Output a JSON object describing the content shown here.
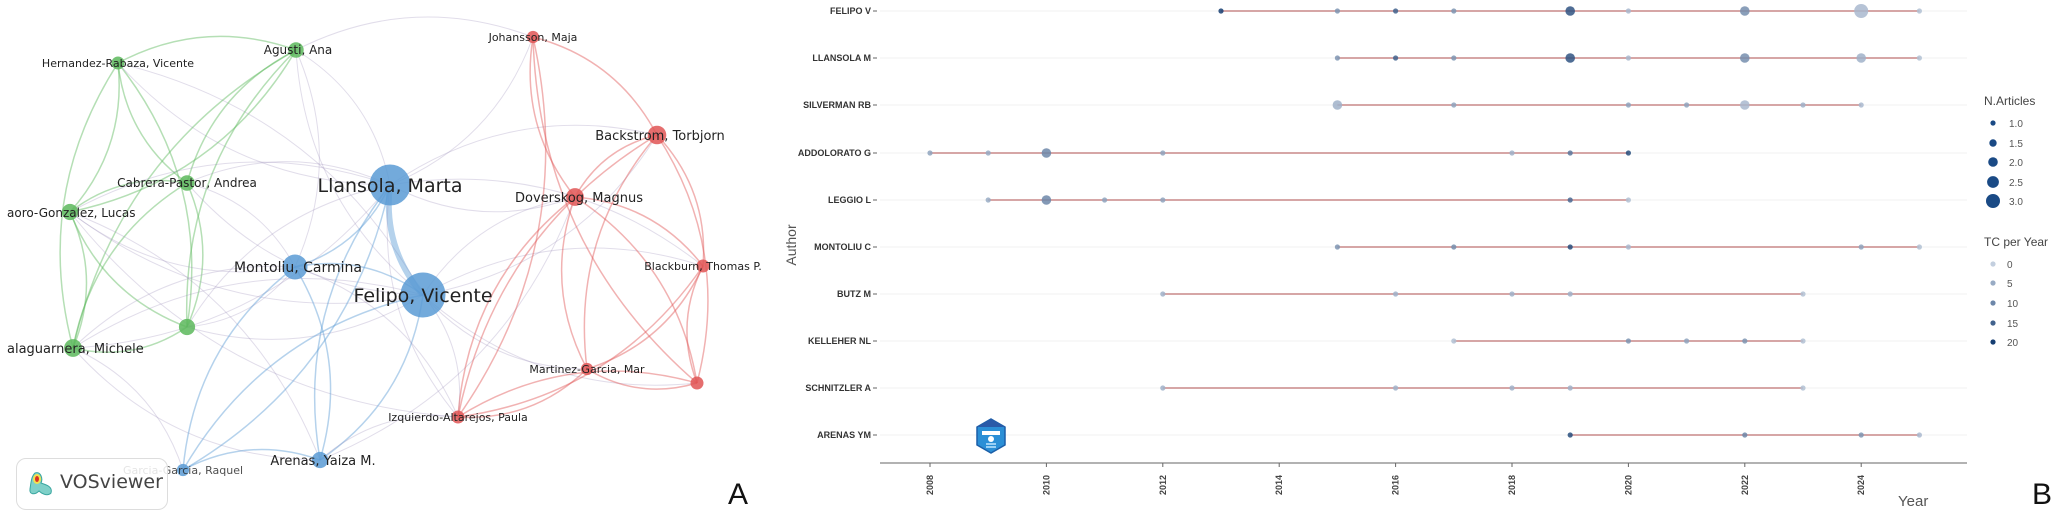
{
  "panels": {
    "left_letter": "A",
    "right_letter": "B"
  },
  "network": {
    "software_label": "VOSviewer",
    "cluster_colors": {
      "green": "#5cb85c",
      "blue": "#5a9bd5",
      "red": "#e05555"
    },
    "nodes": [
      {
        "id": "hernandez",
        "label": "Hernandez-Rabaza, Vicente",
        "cluster": "green",
        "weight": 1
      },
      {
        "id": "agusti",
        "label": "Agusti, Ana",
        "cluster": "green",
        "weight": 1.3
      },
      {
        "id": "cabrera",
        "label": "Cabrera-Pastor, Andrea",
        "cluster": "green",
        "weight": 1.3
      },
      {
        "id": "lucas",
        "label": "aoro-Gonzalez, Lucas",
        "cluster": "green",
        "weight": 1.4
      },
      {
        "id": "green5",
        "label": "",
        "cluster": "green",
        "weight": 1.4
      },
      {
        "id": "malaguarnera",
        "label": "alaguarnera, Michele",
        "cluster": "green",
        "weight": 1.6
      },
      {
        "id": "llansola",
        "label": "Llansola, Marta",
        "cluster": "blue",
        "weight": 4.5
      },
      {
        "id": "felipo",
        "label": "Felipo, Vicente",
        "cluster": "blue",
        "weight": 5
      },
      {
        "id": "montoliu",
        "label": "Montoliu, Carmina",
        "cluster": "blue",
        "weight": 2.5
      },
      {
        "id": "arenas",
        "label": "Arenas, Yaiza M.",
        "cluster": "blue",
        "weight": 1.4
      },
      {
        "id": "garcia",
        "label": "Garcia-Garcia, Raquel",
        "cluster": "blue",
        "weight": 0.9
      },
      {
        "id": "johansson",
        "label": "Johansson, Maja",
        "cluster": "red",
        "weight": 0.9
      },
      {
        "id": "backstrom",
        "label": "Backstrom, Torbjorn",
        "cluster": "red",
        "weight": 1.7
      },
      {
        "id": "doverskog",
        "label": "Doverskog, Magnus",
        "cluster": "red",
        "weight": 1.6
      },
      {
        "id": "blackburn",
        "label": "Blackburn, Thomas P.",
        "cluster": "red",
        "weight": 1
      },
      {
        "id": "martinez",
        "label": "Martinez-Garcia, Mar",
        "cluster": "red",
        "weight": 0.9
      },
      {
        "id": "red7",
        "label": "",
        "cluster": "red",
        "weight": 1
      },
      {
        "id": "izquierdo",
        "label": "Izquierdo-Altarejos, Paula",
        "cluster": "red",
        "weight": 1
      }
    ],
    "links": [
      [
        "hernandez",
        "agusti"
      ],
      [
        "hernandez",
        "cabrera"
      ],
      [
        "hernandez",
        "lucas"
      ],
      [
        "hernandez",
        "malaguarnera"
      ],
      [
        "hernandez",
        "green5"
      ],
      [
        "hernandez",
        "llansola"
      ],
      [
        "hernandez",
        "felipo"
      ],
      [
        "agusti",
        "cabrera"
      ],
      [
        "agusti",
        "lucas"
      ],
      [
        "agusti",
        "green5"
      ],
      [
        "agusti",
        "llansola"
      ],
      [
        "agusti",
        "felipo"
      ],
      [
        "agusti",
        "montoliu"
      ],
      [
        "agusti",
        "malaguarnera"
      ],
      [
        "agusti",
        "johansson"
      ],
      [
        "cabrera",
        "lucas"
      ],
      [
        "cabrera",
        "green5"
      ],
      [
        "cabrera",
        "malaguarnera"
      ],
      [
        "cabrera",
        "llansola"
      ],
      [
        "cabrera",
        "felipo"
      ],
      [
        "cabrera",
        "montoliu"
      ],
      [
        "lucas",
        "green5"
      ],
      [
        "lucas",
        "malaguarnera"
      ],
      [
        "lucas",
        "felipo"
      ],
      [
        "lucas",
        "llansola"
      ],
      [
        "lucas",
        "montoliu"
      ],
      [
        "lucas",
        "arenas"
      ],
      [
        "lucas",
        "izquierdo"
      ],
      [
        "green5",
        "malaguarnera"
      ],
      [
        "green5",
        "felipo"
      ],
      [
        "green5",
        "llansola"
      ],
      [
        "green5",
        "montoliu"
      ],
      [
        "malaguarnera",
        "felipo"
      ],
      [
        "malaguarnera",
        "llansola"
      ],
      [
        "malaguarnera",
        "montoliu"
      ],
      [
        "malaguarnera",
        "arenas"
      ],
      [
        "malaguarnera",
        "garcia"
      ],
      [
        "llansola",
        "felipo"
      ],
      [
        "llansola",
        "montoliu"
      ],
      [
        "llansola",
        "arenas"
      ],
      [
        "llansola",
        "garcia"
      ],
      [
        "llansola",
        "doverskog"
      ],
      [
        "llansola",
        "backstrom"
      ],
      [
        "llansola",
        "izquierdo"
      ],
      [
        "llansola",
        "blackburn"
      ],
      [
        "felipo",
        "montoliu"
      ],
      [
        "felipo",
        "arenas"
      ],
      [
        "felipo",
        "garcia"
      ],
      [
        "felipo",
        "doverskog"
      ],
      [
        "felipo",
        "backstrom"
      ],
      [
        "felipo",
        "blackburn"
      ],
      [
        "felipo",
        "martinez"
      ],
      [
        "felipo",
        "izquierdo"
      ],
      [
        "felipo",
        "red7"
      ],
      [
        "montoliu",
        "arenas"
      ],
      [
        "montoliu",
        "garcia"
      ],
      [
        "montoliu",
        "izquierdo"
      ],
      [
        "arenas",
        "garcia"
      ],
      [
        "arenas",
        "izquierdo"
      ],
      [
        "arenas",
        "doverskog"
      ],
      [
        "johansson",
        "backstrom"
      ],
      [
        "johansson",
        "doverskog"
      ],
      [
        "johansson",
        "izquierdo"
      ],
      [
        "johansson",
        "red7"
      ],
      [
        "johansson",
        "llansola"
      ],
      [
        "backstrom",
        "doverskog"
      ],
      [
        "backstrom",
        "blackburn"
      ],
      [
        "backstrom",
        "martinez"
      ],
      [
        "backstrom",
        "red7"
      ],
      [
        "backstrom",
        "izquierdo"
      ],
      [
        "doverskog",
        "blackburn"
      ],
      [
        "doverskog",
        "martinez"
      ],
      [
        "doverskog",
        "red7"
      ],
      [
        "doverskog",
        "izquierdo"
      ],
      [
        "blackburn",
        "martinez"
      ],
      [
        "blackburn",
        "red7"
      ],
      [
        "blackburn",
        "izquierdo"
      ],
      [
        "martinez",
        "red7"
      ],
      [
        "martinez",
        "izquierdo"
      ],
      [
        "red7",
        "izquierdo"
      ]
    ]
  },
  "chart_data": {
    "type": "scatter",
    "title": "",
    "xlabel": "Year",
    "ylabel": "Author",
    "xlim": [
      2007.2,
      2025.8
    ],
    "x_ticks": [
      2008,
      2010,
      2012,
      2014,
      2016,
      2018,
      2020,
      2022,
      2024
    ],
    "grid": "horizontal",
    "legend_position": "right",
    "size_legend": {
      "title": "N.Articles",
      "values": [
        1.0,
        1.5,
        2.0,
        2.5,
        3.0
      ],
      "labels": [
        "1.0",
        "1.5",
        "2.0",
        "2.5",
        "3.0"
      ]
    },
    "color_legend": {
      "title": "TC per Year",
      "values": [
        0,
        5,
        10,
        15,
        20
      ],
      "labels": [
        "0",
        "5",
        "10",
        "15",
        "20"
      ],
      "low_color": "#c3cfdf",
      "high_color": "#163e72"
    },
    "line_color": "#c98a8a",
    "authors": [
      {
        "name": "FELIPO V",
        "points": [
          [
            2013,
            1,
            20
          ],
          [
            2015,
            1,
            8
          ],
          [
            2016,
            1,
            15
          ],
          [
            2017,
            1,
            8
          ],
          [
            2019,
            2,
            17
          ],
          [
            2020,
            1,
            3
          ],
          [
            2022,
            2,
            9
          ],
          [
            2024,
            3,
            3
          ],
          [
            2025,
            1,
            2
          ]
        ]
      },
      {
        "name": "LLANSOLA M",
        "points": [
          [
            2015,
            1,
            8
          ],
          [
            2016,
            1,
            15
          ],
          [
            2017,
            1,
            8
          ],
          [
            2019,
            2,
            17
          ],
          [
            2020,
            1,
            3
          ],
          [
            2022,
            2,
            9
          ],
          [
            2024,
            2,
            4
          ],
          [
            2025,
            1,
            2
          ]
        ]
      },
      {
        "name": "SILVERMAN RB",
        "points": [
          [
            2015,
            2,
            4
          ],
          [
            2017,
            1,
            6
          ],
          [
            2020,
            1,
            6
          ],
          [
            2021,
            1,
            6
          ],
          [
            2022,
            2,
            3
          ],
          [
            2023,
            1,
            4
          ],
          [
            2024,
            1,
            3
          ]
        ]
      },
      {
        "name": "ADDOLORATO G",
        "points": [
          [
            2008,
            1,
            6
          ],
          [
            2009,
            1,
            5
          ],
          [
            2010,
            2,
            10
          ],
          [
            2012,
            1,
            6
          ],
          [
            2018,
            1,
            4
          ],
          [
            2019,
            1,
            12
          ],
          [
            2020,
            1,
            18
          ]
        ]
      },
      {
        "name": "LEGGIO L",
        "points": [
          [
            2009,
            1,
            5
          ],
          [
            2010,
            2,
            10
          ],
          [
            2011,
            1,
            6
          ],
          [
            2012,
            1,
            6
          ],
          [
            2019,
            1,
            14
          ],
          [
            2020,
            1,
            2
          ]
        ]
      },
      {
        "name": "MONTOLIU C",
        "points": [
          [
            2015,
            1,
            8
          ],
          [
            2017,
            1,
            9
          ],
          [
            2019,
            1,
            18
          ],
          [
            2020,
            1,
            3
          ],
          [
            2024,
            1,
            6
          ],
          [
            2025,
            1,
            2
          ]
        ]
      },
      {
        "name": "BUTZ M",
        "points": [
          [
            2012,
            1,
            4
          ],
          [
            2016,
            1,
            4
          ],
          [
            2018,
            1,
            4
          ],
          [
            2019,
            1,
            4
          ],
          [
            2023,
            1,
            2
          ]
        ]
      },
      {
        "name": "KELLEHER NL",
        "points": [
          [
            2017,
            1,
            2
          ],
          [
            2020,
            1,
            8
          ],
          [
            2021,
            1,
            6
          ],
          [
            2022,
            1,
            8
          ],
          [
            2023,
            1,
            2
          ]
        ]
      },
      {
        "name": "SCHNITZLER A",
        "points": [
          [
            2012,
            1,
            4
          ],
          [
            2016,
            1,
            4
          ],
          [
            2018,
            1,
            4
          ],
          [
            2019,
            1,
            4
          ],
          [
            2023,
            1,
            2
          ]
        ]
      },
      {
        "name": "ARENAS YM",
        "points": [
          [
            2019,
            1,
            18
          ],
          [
            2022,
            1,
            10
          ],
          [
            2024,
            1,
            8
          ],
          [
            2025,
            1,
            3
          ]
        ]
      }
    ]
  }
}
